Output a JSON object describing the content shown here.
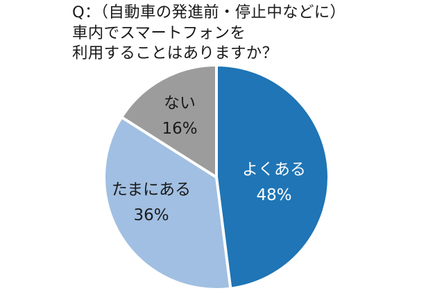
{
  "question": {
    "lines": [
      "Q：（自動車の発進前・停止中などに）",
      "車内でスマートフォンを",
      "利用することはありますか？"
    ]
  },
  "chart_data": {
    "type": "pie",
    "title": "Q：（自動車の発進前・停止中などに）車内でスマートフォンを利用することはありますか？",
    "slices": [
      {
        "label": "よくある",
        "value": 48,
        "value_label": "48%",
        "color": "#1f75b5",
        "text_color": "#ffffff"
      },
      {
        "label": "たまにある",
        "value": 36,
        "value_label": "36%",
        "color": "#a1bfe2",
        "text_color": "#1a1a1a"
      },
      {
        "label": "ない",
        "value": 16,
        "value_label": "16%",
        "color": "#9c9c9c",
        "text_color": "#1a1a1a"
      }
    ],
    "start_angle": "top, clockwise"
  }
}
